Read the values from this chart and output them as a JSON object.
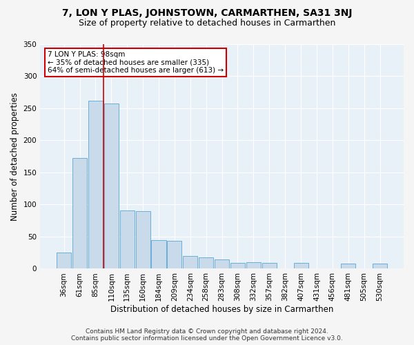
{
  "title": "7, LON Y PLAS, JOHNSTOWN, CARMARTHEN, SA31 3NJ",
  "subtitle": "Size of property relative to detached houses in Carmarthen",
  "xlabel": "Distribution of detached houses by size in Carmarthen",
  "ylabel": "Number of detached properties",
  "footer_line1": "Contains HM Land Registry data © Crown copyright and database right 2024.",
  "footer_line2": "Contains public sector information licensed under the Open Government Licence v3.0.",
  "bin_labels": [
    "36sqm",
    "61sqm",
    "85sqm",
    "110sqm",
    "135sqm",
    "160sqm",
    "184sqm",
    "209sqm",
    "234sqm",
    "258sqm",
    "283sqm",
    "308sqm",
    "332sqm",
    "357sqm",
    "382sqm",
    "407sqm",
    "431sqm",
    "456sqm",
    "481sqm",
    "505sqm",
    "530sqm"
  ],
  "bar_heights": [
    25,
    173,
    262,
    258,
    91,
    90,
    45,
    44,
    20,
    18,
    15,
    9,
    10,
    9,
    0,
    9,
    0,
    0,
    8,
    0,
    8
  ],
  "bar_color": "#c9daea",
  "bar_edge_color": "#6aaed6",
  "vline_x": 2.5,
  "vline_color": "#cc0000",
  "annotation_text": "7 LON Y PLAS: 98sqm\n← 35% of detached houses are smaller (335)\n64% of semi-detached houses are larger (613) →",
  "annotation_box_color": "#ffffff",
  "annotation_box_edge": "#cc0000",
  "ylim": [
    0,
    350
  ],
  "yticks": [
    0,
    50,
    100,
    150,
    200,
    250,
    300,
    350
  ],
  "fig_bg_color": "#f5f5f5",
  "plot_bg_color": "#e8f0f8",
  "title_fontsize": 10,
  "subtitle_fontsize": 9,
  "xlabel_fontsize": 8.5,
  "ylabel_fontsize": 8.5,
  "tick_fontsize": 7.5,
  "footer_fontsize": 6.5,
  "annot_fontsize": 7.5
}
